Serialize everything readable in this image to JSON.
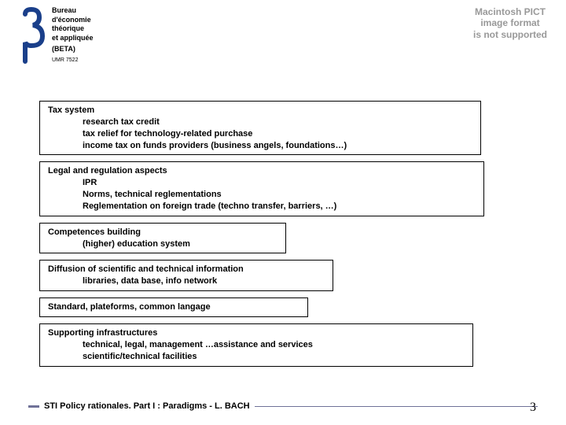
{
  "header": {
    "logo_lines": [
      "Bureau",
      "d'économie",
      "théorique",
      "et appliquée"
    ],
    "beta": "(BETA)",
    "umr": "UMR 7522"
  },
  "error": {
    "line1": "Macintosh PICT",
    "line2": "image format",
    "line3": "is not supported"
  },
  "boxes": [
    {
      "title": "Tax system",
      "subs": [
        "research tax credit",
        "tax relief for technology-related purchase",
        "income tax on funds providers (business angels, foundations…)"
      ],
      "class": "w1"
    },
    {
      "title": "Legal and regulation aspects",
      "subs": [
        "IPR",
        "Norms, technical reglementations",
        "Reglementation on foreign trade (techno transfer, barriers, …)"
      ],
      "class": "w2"
    },
    {
      "title": "Competences building",
      "subs": [
        "(higher) education system"
      ],
      "class": "w3"
    },
    {
      "title": "Diffusion of scientific and technical information",
      "subs": [
        "libraries, data base, info network"
      ],
      "class": "w4"
    },
    {
      "title": "Standard, plateforms, common langage",
      "subs": [],
      "class": "w5"
    },
    {
      "title": "Supporting infrastructures",
      "subs": [
        "technical, legal, management …assistance and services",
        "scientific/technical facilities"
      ],
      "class": "w6"
    }
  ],
  "footer": {
    "text": "STI Policy rationales. Part I : Paradigms - L. BACH",
    "page": "3"
  },
  "colors": {
    "logo_blue": "#1a3f8a",
    "rule": "#707298",
    "error_text": "#999999"
  }
}
